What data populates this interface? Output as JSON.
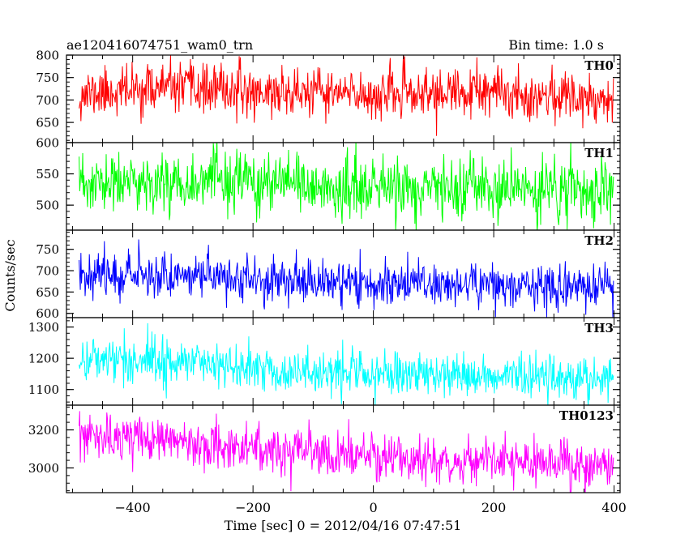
{
  "header": {
    "title": "ae120416074751_wam0_trn",
    "bin_time": "Bin time: 1.0 s"
  },
  "chart_data": {
    "type": "line",
    "xlabel": "Time [sec] 0 = 2012/04/16 07:47:51",
    "ylabel": "Counts/sec",
    "xlim": [
      -510,
      410
    ],
    "x_ticks": [
      -400,
      -200,
      0,
      200,
      400
    ],
    "x_tick_labels": [
      "−400",
      "−200",
      "0",
      "200",
      "400"
    ],
    "x_range_data": [
      -489,
      399
    ],
    "grid": false,
    "panels": [
      {
        "name": "TH0",
        "color": "#ff0000",
        "ylim": [
          605,
          800
        ],
        "ticks": [
          650,
          700,
          750,
          800
        ],
        "tick_labels": [
          "650",
          "700",
          "750",
          "800"
        ],
        "trend": [
          [
            -489,
            712
          ],
          [
            -350,
            728
          ],
          [
            -200,
            718
          ],
          [
            0,
            712
          ],
          [
            200,
            715
          ],
          [
            399,
            705
          ]
        ],
        "noise_sd": 27,
        "seed": 11
      },
      {
        "name": "TH1",
        "color": "#00ff00",
        "ylim": [
          460,
          600
        ],
        "ticks": [
          500,
          550,
          600
        ],
        "tick_labels": [
          "500",
          "550",
          "600"
        ],
        "trend": [
          [
            -489,
            530
          ],
          [
            -300,
            540
          ],
          [
            -100,
            528
          ],
          [
            100,
            525
          ],
          [
            399,
            522
          ]
        ],
        "noise_sd": 24,
        "seed": 23
      },
      {
        "name": "TH2",
        "color": "#0000ff",
        "ylim": [
          590,
          795
        ],
        "ticks": [
          600,
          650,
          700,
          750
        ],
        "tick_labels": [
          "600",
          "650",
          "700",
          "750"
        ],
        "trend": [
          [
            -489,
            695
          ],
          [
            -300,
            690
          ],
          [
            -100,
            672
          ],
          [
            100,
            670
          ],
          [
            399,
            660
          ]
        ],
        "noise_sd": 26,
        "seed": 37
      },
      {
        "name": "TH3",
        "color": "#00ffff",
        "ylim": [
          1050,
          1330
        ],
        "ticks": [
          1100,
          1200,
          1300
        ],
        "tick_labels": [
          "1100",
          "1200",
          "1300"
        ],
        "trend": [
          [
            -489,
            1200
          ],
          [
            -300,
            1190
          ],
          [
            -200,
            1165
          ],
          [
            0,
            1150
          ],
          [
            200,
            1145
          ],
          [
            399,
            1140
          ]
        ],
        "noise_sd": 36,
        "seed": 41
      },
      {
        "name": "TH0123",
        "color": "#ff00ff",
        "ylim": [
          2870,
          3330
        ],
        "ticks": [
          3000,
          3200
        ],
        "tick_labels": [
          "3000",
          "3200"
        ],
        "trend": [
          [
            -489,
            3160
          ],
          [
            -300,
            3140
          ],
          [
            -100,
            3070
          ],
          [
            100,
            3040
          ],
          [
            399,
            3010
          ]
        ],
        "noise_sd": 60,
        "seed": 53
      }
    ]
  }
}
